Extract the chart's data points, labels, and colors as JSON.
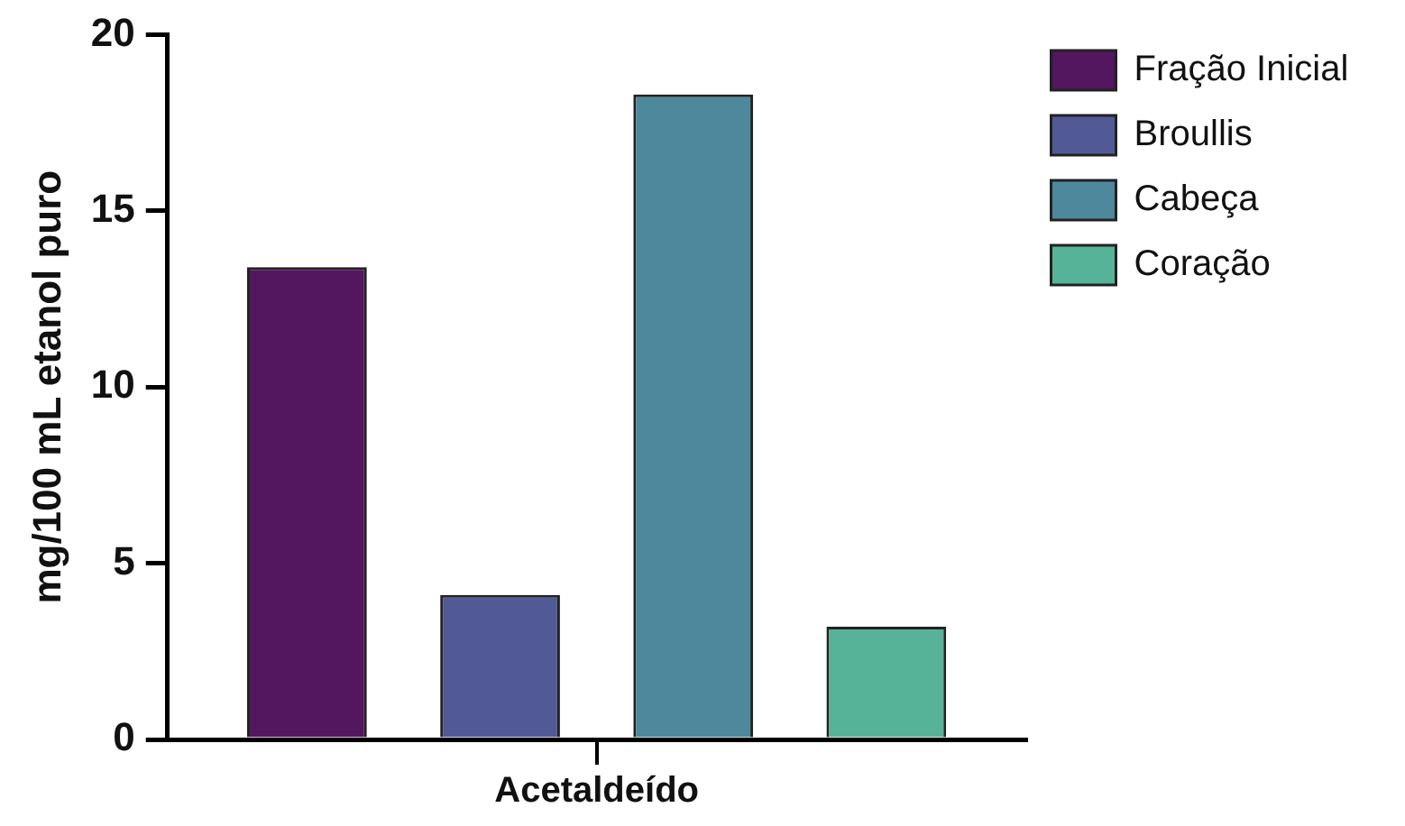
{
  "chart_data": {
    "type": "bar",
    "categories": [
      "Acetaldeído"
    ],
    "ylabel": "mg/100 mL etanol puro",
    "series": [
      {
        "name": "Fração Inicial",
        "color": "#52175e",
        "values": [
          13.4
        ]
      },
      {
        "name": "Broullis",
        "color": "#525a96",
        "values": [
          4.1
        ]
      },
      {
        "name": "Cabeça",
        "color": "#4e889c",
        "values": [
          18.3
        ]
      },
      {
        "name": "Coração",
        "color": "#56b398",
        "values": [
          3.2
        ]
      }
    ],
    "ylim": [
      0,
      20
    ],
    "yticks": [
      0,
      5,
      10,
      15,
      20
    ],
    "grid": false,
    "legend": "right"
  }
}
